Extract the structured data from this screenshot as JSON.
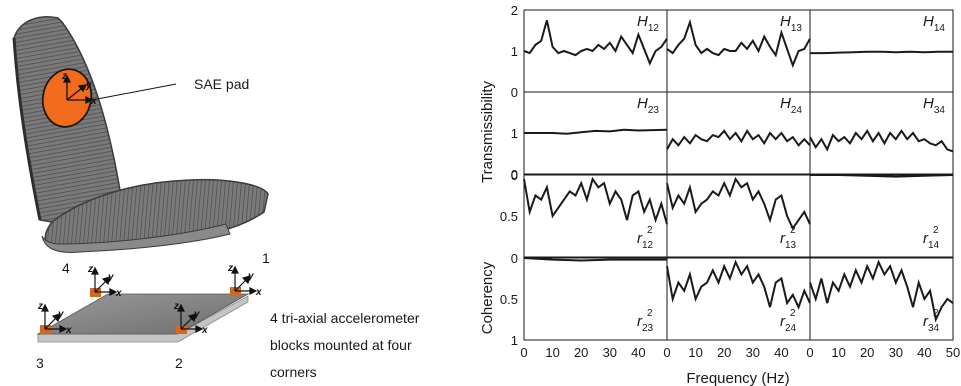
{
  "seat": {
    "pad_label": "SAE pad",
    "corner_labels": [
      "1",
      "2",
      "3",
      "4"
    ],
    "caption": [
      "4 tri-axial accelerometer",
      "blocks mounted at four",
      "corners"
    ],
    "axis_letters": {
      "x": "x",
      "y": "y",
      "z": "z"
    },
    "colors": {
      "pad": "#f26b1d",
      "block": "#d2691e",
      "seat": "#6b6b6b"
    }
  },
  "chart_data": {
    "type": "line",
    "layout": "4x3 grid of panels",
    "x_label": "Frequency (Hz)",
    "y_label_top": "Transmissibility",
    "y_label_bottom": "Coherency",
    "x_ticks": [
      "0",
      "10",
      "20",
      "30",
      "40",
      "0",
      "10",
      "20",
      "30",
      "40",
      "0",
      "10",
      "20",
      "30",
      "40",
      "50"
    ],
    "panels": [
      {
        "id": "p00",
        "row": 0,
        "col": 0,
        "label_main": "H",
        "label_sub": "12",
        "label_sup": "",
        "ticks": [
          "2",
          "1",
          "0"
        ],
        "ylim": [
          0,
          2
        ],
        "x": [
          0,
          2,
          4,
          6,
          8,
          10,
          12,
          14,
          16,
          18,
          20,
          22,
          24,
          26,
          28,
          30,
          32,
          34,
          36,
          38,
          40,
          42,
          44,
          46,
          48,
          50
        ],
        "y": [
          1.0,
          0.95,
          1.15,
          1.25,
          1.75,
          1.1,
          0.95,
          1.0,
          0.95,
          0.9,
          1.0,
          1.05,
          1.0,
          1.15,
          1.05,
          1.2,
          1.0,
          1.35,
          1.15,
          0.95,
          1.4,
          1.05,
          0.7,
          1.0,
          1.1,
          1.3
        ]
      },
      {
        "id": "p01",
        "row": 0,
        "col": 1,
        "label_main": "H",
        "label_sub": "13",
        "label_sup": "",
        "ticks": [],
        "ylim": [
          0,
          2
        ],
        "x": [
          0,
          2,
          4,
          6,
          8,
          10,
          12,
          14,
          16,
          18,
          20,
          22,
          24,
          26,
          28,
          30,
          32,
          34,
          36,
          38,
          40,
          42,
          44,
          46,
          48,
          50
        ],
        "y": [
          1.05,
          0.95,
          1.15,
          1.3,
          1.7,
          1.15,
          0.95,
          1.05,
          0.95,
          0.9,
          1.05,
          1.0,
          1.0,
          1.2,
          1.05,
          1.25,
          1.0,
          1.35,
          1.1,
          0.9,
          1.45,
          1.05,
          0.65,
          1.0,
          1.05,
          1.3
        ]
      },
      {
        "id": "p02",
        "row": 0,
        "col": 2,
        "label_main": "H",
        "label_sub": "14",
        "label_sup": "",
        "ticks": [],
        "ylim": [
          0,
          2
        ],
        "x": [
          0,
          5,
          10,
          15,
          20,
          25,
          30,
          35,
          40,
          45,
          50
        ],
        "y": [
          0.95,
          0.95,
          0.96,
          0.97,
          0.98,
          0.98,
          0.97,
          0.98,
          0.97,
          0.98,
          0.98
        ]
      },
      {
        "id": "p10",
        "row": 1,
        "col": 0,
        "label_main": "H",
        "label_sub": "23",
        "label_sup": "",
        "ticks": [
          "1",
          "0"
        ],
        "ylim": [
          0,
          2
        ],
        "x": [
          0,
          5,
          10,
          15,
          20,
          25,
          30,
          35,
          40,
          45,
          50
        ],
        "y": [
          1.0,
          1.0,
          1.0,
          0.98,
          1.02,
          1.05,
          1.04,
          1.08,
          1.06,
          1.07,
          1.08
        ]
      },
      {
        "id": "p11",
        "row": 1,
        "col": 1,
        "label_main": "H",
        "label_sub": "24",
        "label_sup": "",
        "ticks": [],
        "ylim": [
          0,
          2
        ],
        "x": [
          0,
          2,
          4,
          6,
          8,
          10,
          12,
          14,
          16,
          18,
          20,
          22,
          24,
          26,
          28,
          30,
          32,
          34,
          36,
          38,
          40,
          42,
          44,
          46,
          48,
          50
        ],
        "y": [
          0.6,
          0.85,
          0.7,
          0.9,
          0.75,
          0.95,
          0.85,
          0.8,
          0.95,
          0.9,
          1.05,
          0.85,
          1.0,
          0.8,
          1.05,
          0.85,
          0.95,
          0.75,
          1.0,
          0.85,
          1.0,
          0.8,
          0.9,
          0.7,
          0.85,
          0.7
        ]
      },
      {
        "id": "p12",
        "row": 1,
        "col": 2,
        "label_main": "H",
        "label_sub": "34",
        "label_sup": "",
        "ticks": [],
        "ylim": [
          0,
          2
        ],
        "x": [
          0,
          2,
          4,
          6,
          8,
          10,
          12,
          14,
          16,
          18,
          20,
          22,
          24,
          26,
          28,
          30,
          32,
          34,
          36,
          38,
          40,
          42,
          44,
          46,
          48,
          50
        ],
        "y": [
          0.9,
          0.65,
          0.85,
          0.6,
          0.95,
          0.8,
          0.9,
          0.75,
          1.0,
          0.85,
          1.05,
          0.8,
          1.0,
          0.75,
          1.0,
          0.85,
          1.05,
          0.85,
          1.0,
          0.8,
          0.85,
          0.75,
          0.7,
          0.8,
          0.6,
          0.55
        ]
      },
      {
        "id": "p20",
        "row": 2,
        "col": 0,
        "label_main": "r",
        "label_sub": "12",
        "label_sup": "2",
        "ticks": [
          "0",
          "0.5"
        ],
        "ylim": [
          0,
          1
        ],
        "x": [
          0,
          2,
          4,
          6,
          8,
          10,
          12,
          14,
          16,
          18,
          20,
          22,
          24,
          26,
          28,
          30,
          32,
          34,
          36,
          38,
          40,
          42,
          44,
          46,
          48,
          50
        ],
        "y": [
          0.05,
          0.45,
          0.25,
          0.3,
          0.15,
          0.5,
          0.4,
          0.3,
          0.2,
          0.25,
          0.1,
          0.3,
          0.05,
          0.15,
          0.1,
          0.35,
          0.2,
          0.3,
          0.55,
          0.25,
          0.2,
          0.45,
          0.3,
          0.55,
          0.35,
          0.6
        ]
      },
      {
        "id": "p21",
        "row": 2,
        "col": 1,
        "label_main": "r",
        "label_sub": "13",
        "label_sup": "2",
        "ticks": [],
        "ylim": [
          0,
          1
        ],
        "x": [
          0,
          2,
          4,
          6,
          8,
          10,
          12,
          14,
          16,
          18,
          20,
          22,
          24,
          26,
          28,
          30,
          32,
          34,
          36,
          38,
          40,
          42,
          44,
          46,
          48,
          50
        ],
        "y": [
          0.1,
          0.4,
          0.25,
          0.35,
          0.15,
          0.45,
          0.35,
          0.3,
          0.2,
          0.25,
          0.1,
          0.25,
          0.05,
          0.15,
          0.1,
          0.3,
          0.2,
          0.35,
          0.55,
          0.3,
          0.25,
          0.5,
          0.65,
          0.55,
          0.45,
          0.6
        ]
      },
      {
        "id": "p22",
        "row": 2,
        "col": 2,
        "label_main": "r",
        "label_sub": "14",
        "label_sup": "2",
        "ticks": [],
        "ylim": [
          0,
          1
        ],
        "x": [
          0,
          10,
          20,
          30,
          40,
          50
        ],
        "y": [
          0.0,
          0.0,
          0.01,
          0.02,
          0.01,
          0.0
        ]
      },
      {
        "id": "p30",
        "row": 3,
        "col": 0,
        "label_main": "r",
        "label_sub": "23",
        "label_sup": "2",
        "ticks": [
          "0",
          "0.5",
          "1"
        ],
        "ylim": [
          0,
          1
        ],
        "x": [
          0,
          10,
          20,
          30,
          40,
          50
        ],
        "y": [
          0.0,
          0.02,
          0.03,
          0.02,
          0.02,
          0.02
        ]
      },
      {
        "id": "p31",
        "row": 3,
        "col": 1,
        "label_main": "r",
        "label_sub": "24",
        "label_sup": "2",
        "ticks": [],
        "ylim": [
          0,
          1
        ],
        "x": [
          0,
          2,
          4,
          6,
          8,
          10,
          12,
          14,
          16,
          18,
          20,
          22,
          24,
          26,
          28,
          30,
          32,
          34,
          36,
          38,
          40,
          42,
          44,
          46,
          48,
          50
        ],
        "y": [
          0.1,
          0.5,
          0.3,
          0.4,
          0.2,
          0.5,
          0.35,
          0.3,
          0.15,
          0.3,
          0.1,
          0.25,
          0.05,
          0.2,
          0.1,
          0.3,
          0.2,
          0.35,
          0.6,
          0.3,
          0.25,
          0.55,
          0.45,
          0.6,
          0.4,
          0.55
        ]
      },
      {
        "id": "p32",
        "row": 3,
        "col": 2,
        "label_main": "r",
        "label_sub": "34",
        "label_sup": "2",
        "ticks": [],
        "ylim": [
          0,
          1
        ],
        "x": [
          0,
          2,
          4,
          6,
          8,
          10,
          12,
          14,
          16,
          18,
          20,
          22,
          24,
          26,
          28,
          30,
          32,
          34,
          36,
          38,
          40,
          42,
          44,
          46,
          48,
          50
        ],
        "y": [
          0.3,
          0.5,
          0.25,
          0.55,
          0.3,
          0.4,
          0.2,
          0.35,
          0.15,
          0.3,
          0.1,
          0.25,
          0.05,
          0.2,
          0.1,
          0.3,
          0.15,
          0.35,
          0.6,
          0.3,
          0.5,
          0.4,
          0.75,
          0.6,
          0.5,
          0.55
        ]
      }
    ]
  }
}
